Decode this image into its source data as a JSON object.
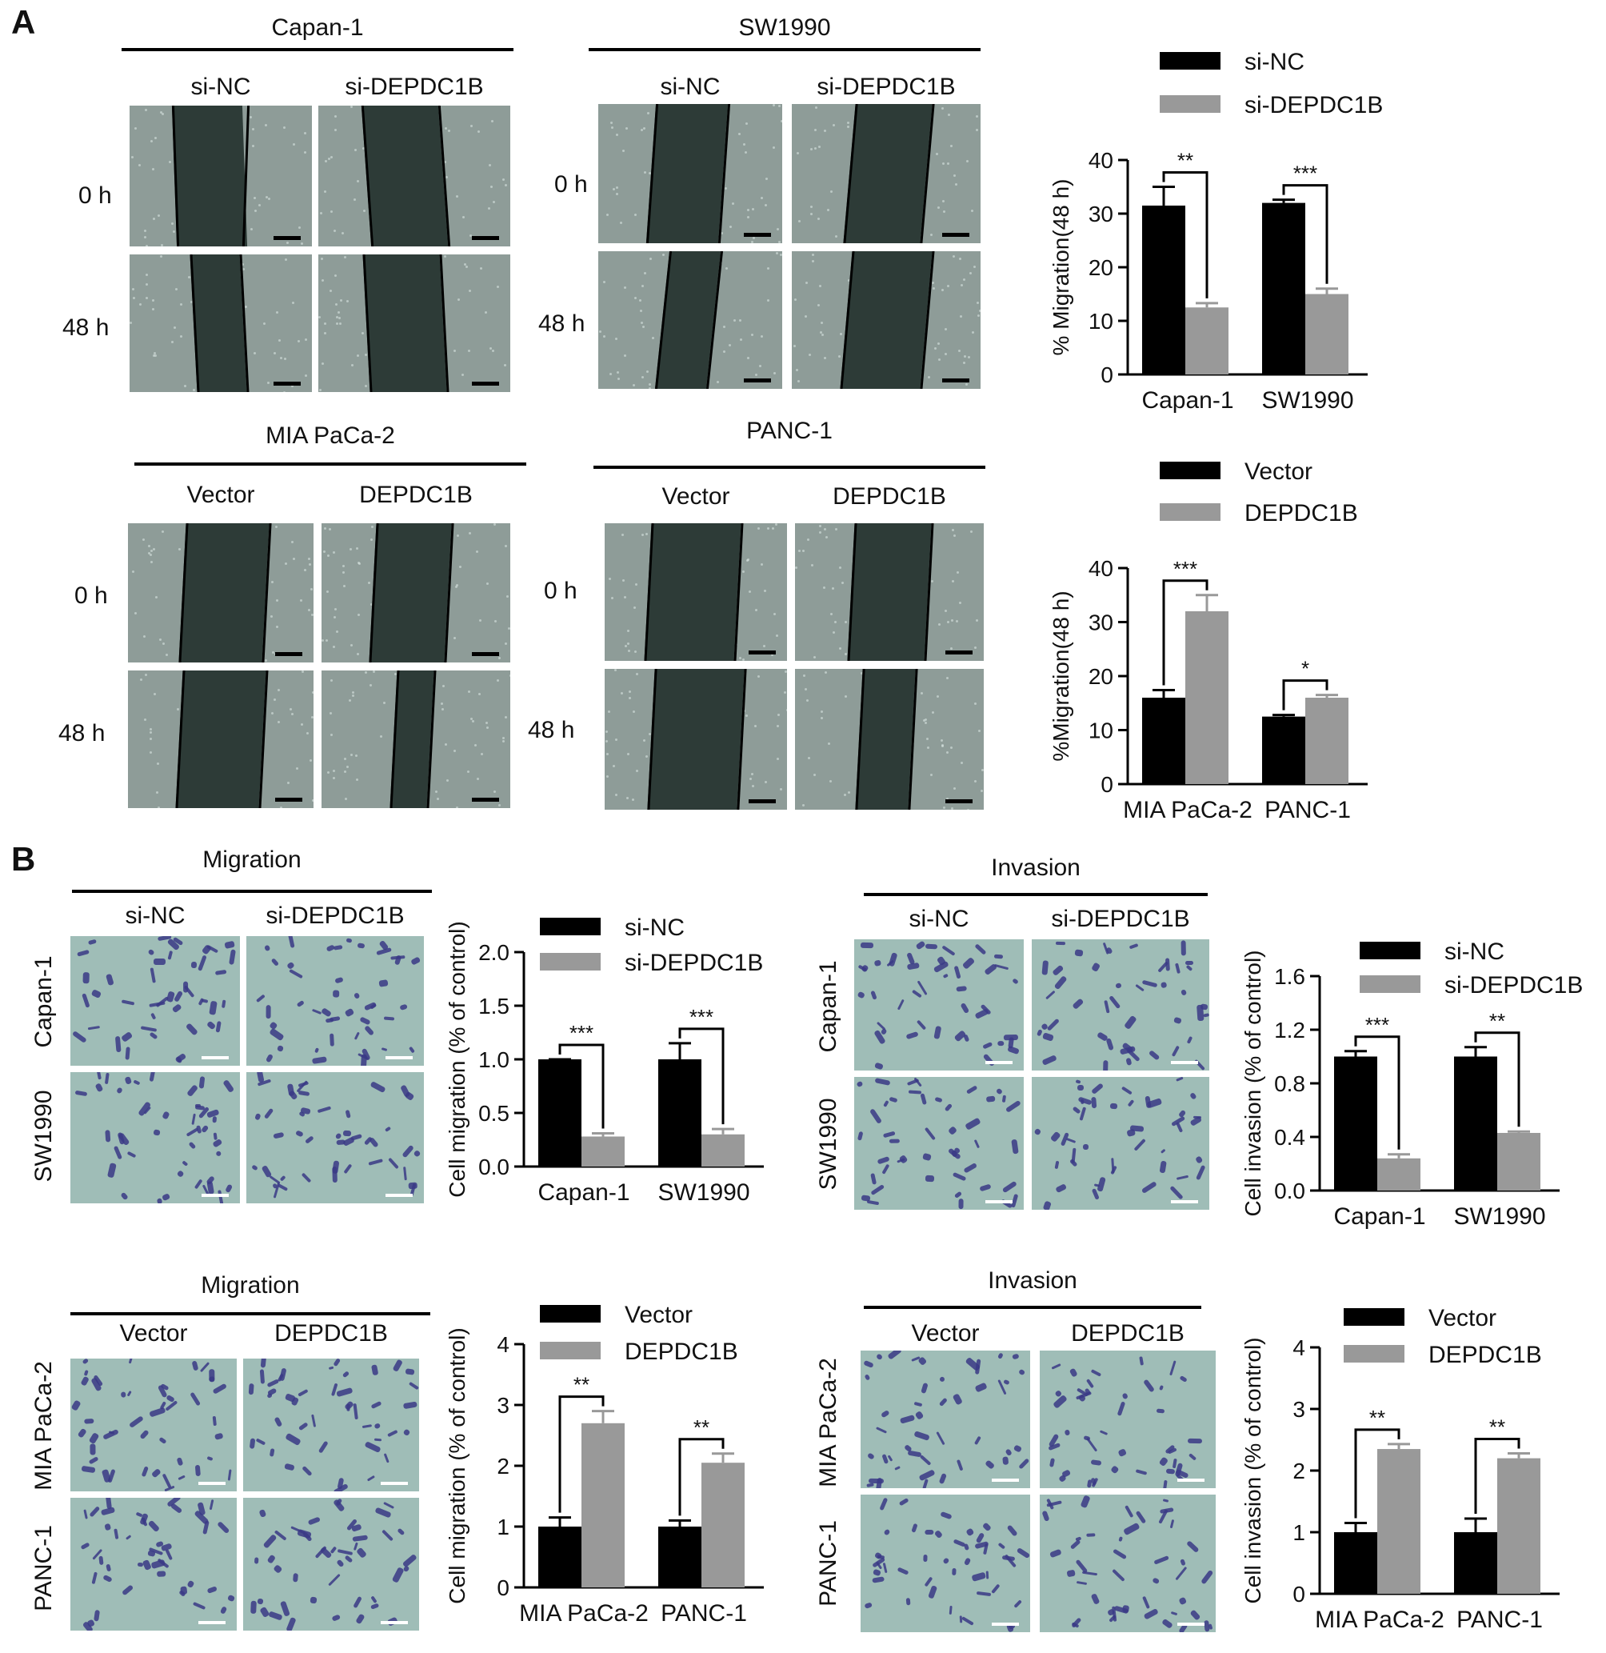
{
  "panel_a": {
    "label": "A",
    "row_labels": [
      "0 h",
      "48 h"
    ],
    "groups": [
      {
        "title": "Capan-1",
        "conditions": [
          "si-NC",
          "si-DEPDC1B"
        ]
      },
      {
        "title": "SW1990",
        "conditions": [
          "si-NC",
          "si-DEPDC1B"
        ]
      },
      {
        "title": "MIA PaCa-2",
        "conditions": [
          "Vector",
          "DEPDC1B"
        ]
      },
      {
        "title": "PANC-1",
        "conditions": [
          "Vector",
          "DEPDC1B"
        ]
      }
    ]
  },
  "panel_b": {
    "label": "B",
    "groups": [
      {
        "title": "Migration",
        "conditions": [
          "si-NC",
          "si-DEPDC1B"
        ],
        "rows": [
          "Capan-1",
          "SW1990"
        ]
      },
      {
        "title": "Invasion",
        "conditions": [
          "si-NC",
          "si-DEPDC1B"
        ],
        "rows": [
          "Capan-1",
          "SW1990"
        ]
      },
      {
        "title": "Migration",
        "conditions": [
          "Vector",
          "DEPDC1B"
        ],
        "rows": [
          "MIA PaCa-2",
          "PANC-1"
        ]
      },
      {
        "title": "Invasion",
        "conditions": [
          "Vector",
          "DEPDC1B"
        ],
        "rows": [
          "MIA PaCa-2",
          "PANC-1"
        ]
      }
    ]
  },
  "colors": {
    "series1": "#000000",
    "series2": "#999999"
  },
  "chart_data": [
    {
      "type": "bar",
      "ylabel": "% Migration(48 h)",
      "ylim": [
        0,
        40
      ],
      "yticks": [
        "0",
        "10",
        "20",
        "30",
        "40"
      ],
      "categories": [
        "Capan-1",
        "SW1990"
      ],
      "series": [
        {
          "name": "si-NC",
          "values": [
            31.5,
            32
          ],
          "errors": [
            3.5,
            0.6
          ]
        },
        {
          "name": "si-DEPDC1B",
          "values": [
            12.5,
            15
          ],
          "errors": [
            0.8,
            1.0
          ]
        }
      ],
      "significance": [
        "**",
        "***"
      ],
      "legend": "top"
    },
    {
      "type": "bar",
      "ylabel": "%Migration(48 h)",
      "ylim": [
        0,
        40
      ],
      "yticks": [
        "0",
        "10",
        "20",
        "30",
        "40"
      ],
      "categories": [
        "MIA PaCa-2",
        "PANC-1"
      ],
      "series": [
        {
          "name": "Vector",
          "values": [
            16,
            12.5
          ],
          "errors": [
            1.4,
            0.3
          ]
        },
        {
          "name": "DEPDC1B",
          "values": [
            32,
            16
          ],
          "errors": [
            3.0,
            0.5
          ]
        }
      ],
      "significance": [
        "***",
        "*"
      ],
      "legend": "top"
    },
    {
      "type": "bar",
      "ylabel": "Cell migration  (% of control)",
      "ylim": [
        0,
        2.0
      ],
      "yticks": [
        "0.0",
        "0.5",
        "1.0",
        "1.5",
        "2.0"
      ],
      "categories": [
        "Capan-1",
        "SW1990"
      ],
      "series": [
        {
          "name": "si-NC",
          "values": [
            1.0,
            1.0
          ],
          "errors": [
            0.0,
            0.15
          ]
        },
        {
          "name": "si-DEPDC1B",
          "values": [
            0.28,
            0.3
          ],
          "errors": [
            0.03,
            0.05
          ]
        }
      ],
      "significance": [
        "***",
        "***"
      ],
      "legend": "top"
    },
    {
      "type": "bar",
      "ylabel": "Cell invasion (% of control)",
      "ylim": [
        0,
        1.6
      ],
      "yticks": [
        "0.0",
        "0.4",
        "0.8",
        "1.2",
        "1.6"
      ],
      "categories": [
        "Capan-1",
        "SW1990"
      ],
      "series": [
        {
          "name": "si-NC",
          "values": [
            1.0,
            1.0
          ],
          "errors": [
            0.04,
            0.07
          ]
        },
        {
          "name": "si-DEPDC1B",
          "values": [
            0.24,
            0.43
          ],
          "errors": [
            0.03,
            0.01
          ]
        }
      ],
      "significance": [
        "***",
        "**"
      ],
      "legend": "top"
    },
    {
      "type": "bar",
      "ylabel": "Cell migration  (% of control)",
      "ylim": [
        0,
        4
      ],
      "yticks": [
        "0",
        "1",
        "2",
        "3",
        "4"
      ],
      "categories": [
        "MIA PaCa-2",
        "PANC-1"
      ],
      "series": [
        {
          "name": "Vector",
          "values": [
            1.0,
            1.0
          ],
          "errors": [
            0.15,
            0.1
          ]
        },
        {
          "name": "DEPDC1B",
          "values": [
            2.7,
            2.05
          ],
          "errors": [
            0.2,
            0.15
          ]
        }
      ],
      "significance": [
        "**",
        "**"
      ],
      "legend": "top"
    },
    {
      "type": "bar",
      "ylabel": "Cell invasion  (% of control)",
      "ylim": [
        0,
        4
      ],
      "yticks": [
        "0",
        "1",
        "2",
        "3",
        "4"
      ],
      "categories": [
        "MIA PaCa-2",
        "PANC-1"
      ],
      "series": [
        {
          "name": "Vector",
          "values": [
            1.0,
            1.0
          ],
          "errors": [
            0.15,
            0.22
          ]
        },
        {
          "name": "DEPDC1B",
          "values": [
            2.35,
            2.2
          ],
          "errors": [
            0.08,
            0.08
          ]
        }
      ],
      "significance": [
        "**",
        "**"
      ],
      "legend": "top"
    }
  ]
}
